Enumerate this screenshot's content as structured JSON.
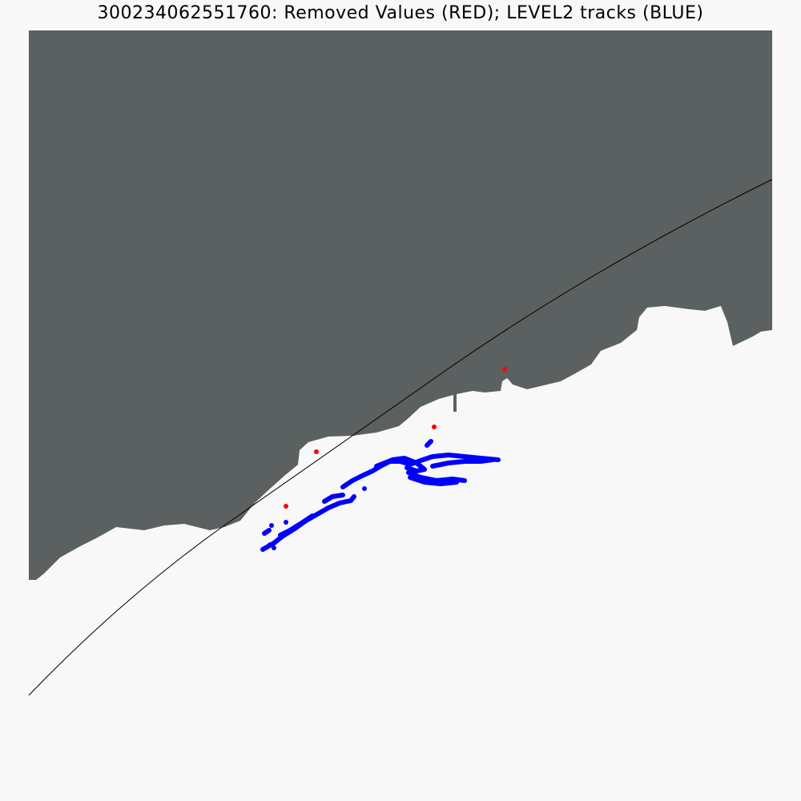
{
  "title": "300234062551760:  Removed Values (RED); LEVEL2 tracks (BLUE)",
  "colors": {
    "background": "#f8f8f8",
    "land": "#5a6160",
    "removed_values": "#ff0000",
    "level2_tracks": "#0000ff",
    "line": "#000000"
  }
}
